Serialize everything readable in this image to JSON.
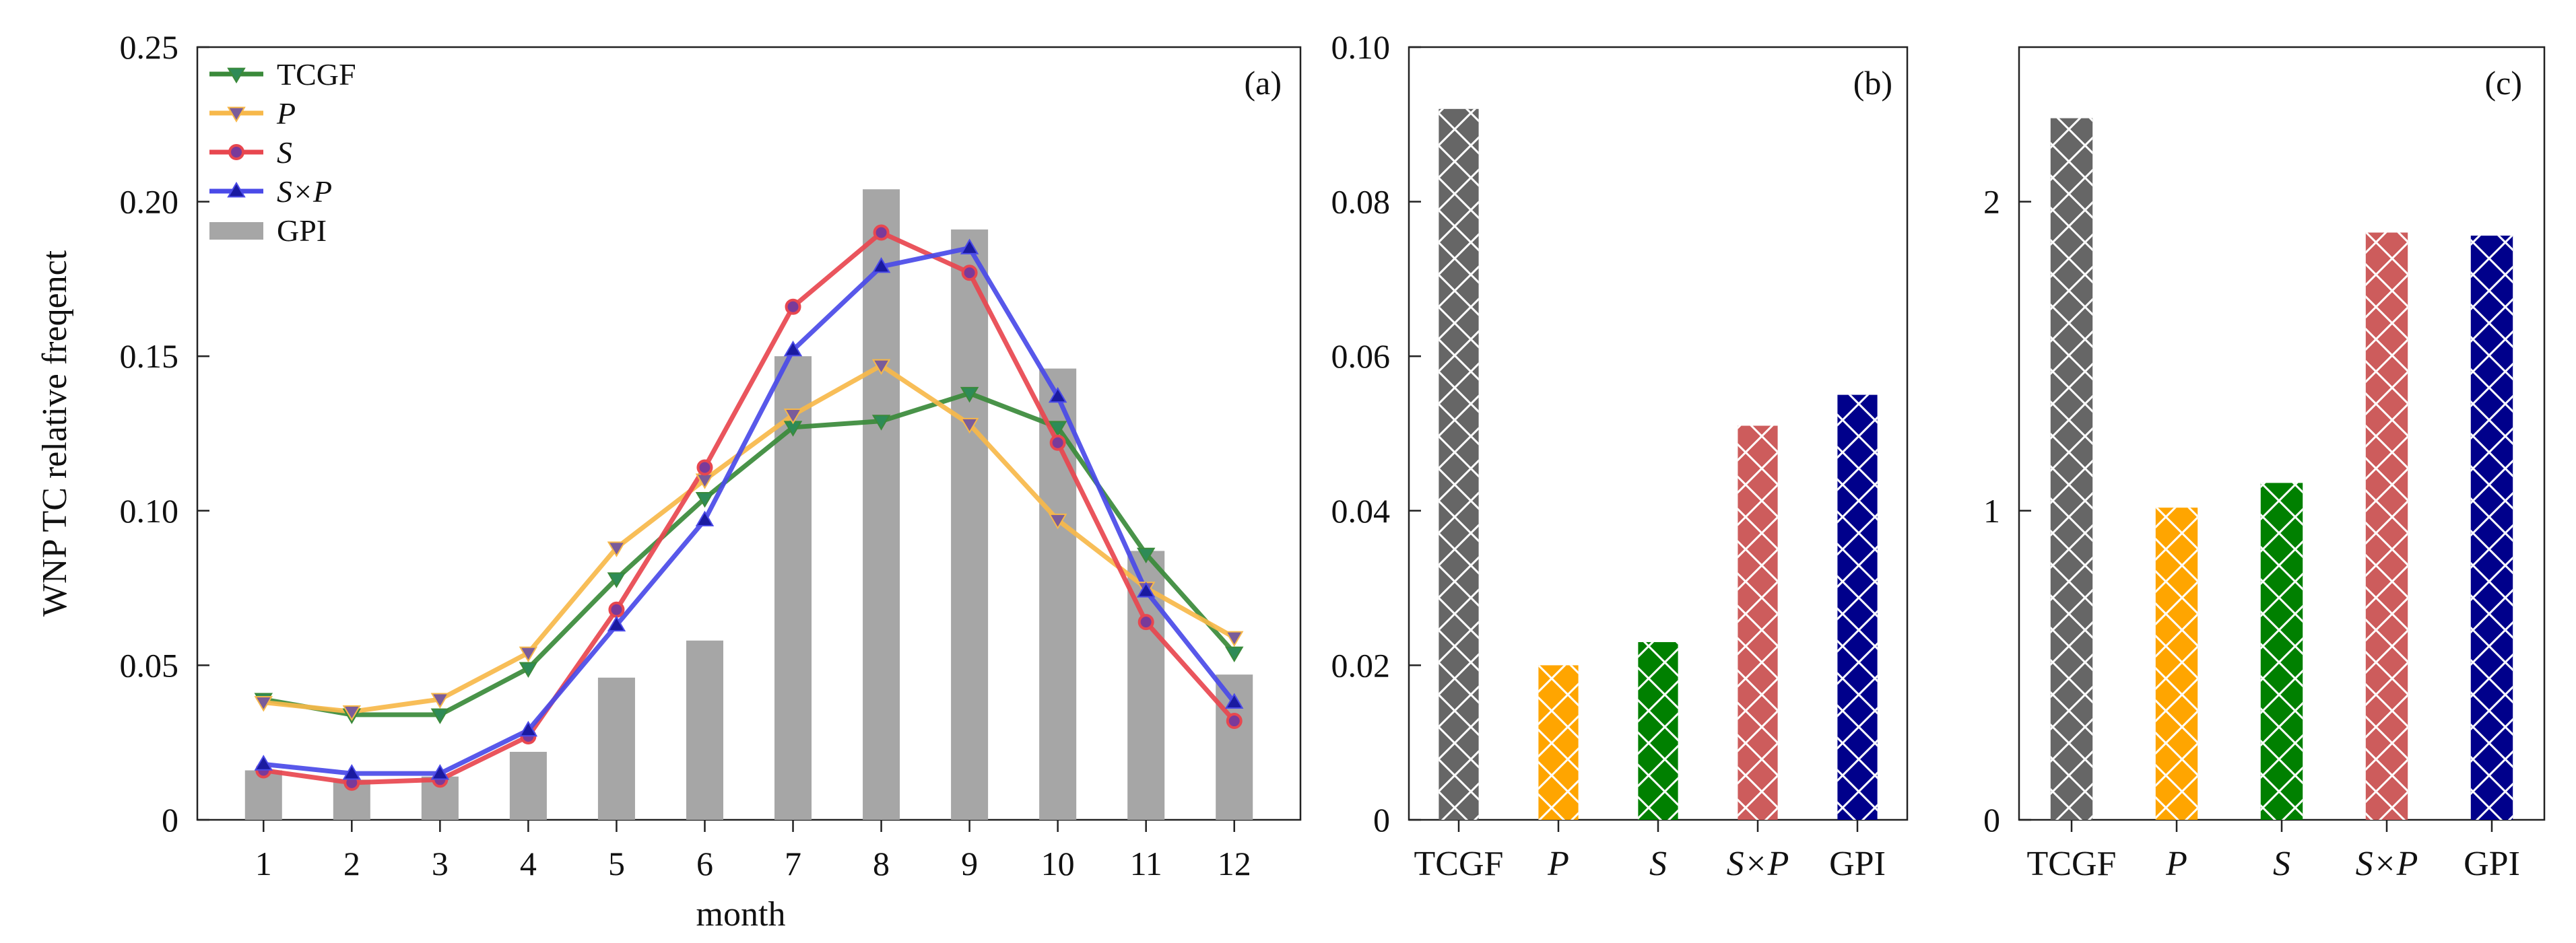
{
  "chart_data": [
    {
      "panel": "(a)",
      "type": "bar+line",
      "xlabel": "month",
      "ylabel": "WNP TC relative freqenct",
      "categories": [
        "1",
        "2",
        "3",
        "4",
        "5",
        "6",
        "7",
        "8",
        "9",
        "10",
        "11",
        "12"
      ],
      "ylim": [
        0,
        0.25
      ],
      "yticks": [
        0,
        0.05,
        0.1,
        0.15,
        0.2,
        0.25
      ],
      "ytick_labels": [
        "0",
        "0.05",
        "0.10",
        "0.15",
        "0.20",
        "0.25"
      ],
      "bars": {
        "name": "GPI",
        "color": "#a6a6a6",
        "values": [
          0.016,
          0.013,
          0.014,
          0.022,
          0.046,
          0.058,
          0.15,
          0.204,
          0.191,
          0.146,
          0.087,
          0.047
        ]
      },
      "series": [
        {
          "name": "TCGF",
          "color": "#3a8a3a",
          "marker": "triangle-down",
          "marker_color": "#2e8b57",
          "values": [
            0.039,
            0.034,
            0.034,
            0.049,
            0.078,
            0.104,
            0.127,
            0.129,
            0.138,
            0.127,
            0.086,
            0.054
          ]
        },
        {
          "name": "P",
          "italic": true,
          "color": "#f7b84a",
          "marker": "triangle-down",
          "marker_color": "#7a5c9a",
          "values": [
            0.038,
            0.035,
            0.039,
            0.054,
            0.088,
            0.11,
            0.131,
            0.147,
            0.128,
            0.097,
            0.075,
            0.059
          ]
        },
        {
          "name": "S",
          "italic": true,
          "color": "#e8474f",
          "marker": "circle",
          "marker_color": "#7a3a9a",
          "values": [
            0.016,
            0.012,
            0.013,
            0.027,
            0.068,
            0.114,
            0.166,
            0.19,
            0.177,
            0.122,
            0.064,
            0.032
          ]
        },
        {
          "name": "S×P",
          "italic": true,
          "color": "#4a4ae8",
          "marker": "triangle-up",
          "marker_color": "#1a1aa0",
          "values": [
            0.018,
            0.015,
            0.015,
            0.029,
            0.063,
            0.097,
            0.152,
            0.179,
            0.185,
            0.137,
            0.074,
            0.038
          ]
        }
      ],
      "legend": {
        "position": "top-left",
        "entries": [
          "TCGF",
          "P",
          "S",
          "S×P",
          "GPI"
        ]
      }
    },
    {
      "panel": "(b)",
      "type": "bar",
      "categories": [
        "TCGF",
        "P",
        "S",
        "S×P",
        "GPI"
      ],
      "italic_categories": [
        false,
        true,
        true,
        true,
        false
      ],
      "values": [
        0.092,
        0.02,
        0.023,
        0.051,
        0.055
      ],
      "colors": [
        "#666666",
        "#ffa500",
        "#008000",
        "#cd5c5c",
        "#00008b"
      ],
      "hatch": "cross",
      "ylim": [
        0,
        0.1
      ],
      "yticks": [
        0,
        0.02,
        0.04,
        0.06,
        0.08,
        0.1
      ],
      "ytick_labels": [
        "0",
        "0.02",
        "0.04",
        "0.06",
        "0.08",
        "0.10"
      ]
    },
    {
      "panel": "(c)",
      "type": "bar",
      "categories": [
        "TCGF",
        "P",
        "S",
        "S×P",
        "GPI"
      ],
      "italic_categories": [
        false,
        true,
        true,
        true,
        false
      ],
      "values": [
        2.27,
        1.01,
        1.09,
        1.9,
        1.89
      ],
      "colors": [
        "#666666",
        "#ffa500",
        "#008000",
        "#cd5c5c",
        "#00008b"
      ],
      "hatch": "cross",
      "ylim": [
        0,
        2.5
      ],
      "yticks": [
        0,
        1,
        2
      ],
      "ytick_labels": [
        "0",
        "1",
        "2"
      ]
    }
  ]
}
